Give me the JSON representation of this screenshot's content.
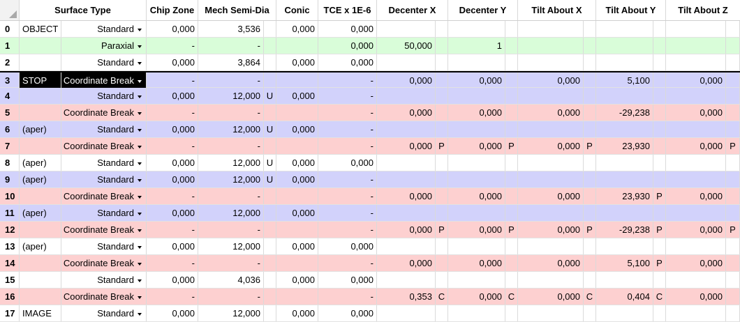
{
  "header": {
    "surface_type": "Surface Type",
    "chip_zone": "Chip Zone",
    "mech_semi_dia": "Mech Semi-Dia",
    "conic": "Conic",
    "tce": "TCE x 1E-6",
    "decenter_x": "Decenter X",
    "decenter_y": "Decenter Y",
    "tilt_x": "Tilt About X",
    "tilt_y": "Tilt About Y",
    "tilt_z": "Tilt About Z"
  },
  "colors": {
    "white": "#ffffff",
    "green": "#d9fdd9",
    "blue": "#d2d2fb",
    "pink": "#fdd0d0",
    "selected": "#000000"
  },
  "rows": [
    {
      "num": "0",
      "label": "OBJECT",
      "type": "Standard",
      "bg": "white",
      "chip": "0,000",
      "mech": "3,536",
      "mechf": "",
      "conic": "0,000",
      "tce": "0,000",
      "dx": "",
      "dxf": "",
      "dy": "",
      "dyf": "",
      "tx": "",
      "txf": "",
      "ty": "",
      "tyf": "",
      "tz": "",
      "tzf": ""
    },
    {
      "num": "1",
      "label": "",
      "type": "Paraxial",
      "bg": "green",
      "chip": "-",
      "mech": "-",
      "mechf": "",
      "conic": "",
      "tce": "0,000",
      "dx": "50,000",
      "dxf": "",
      "dy": "1",
      "dyf": "",
      "tx": "",
      "txf": "",
      "ty": "",
      "tyf": "",
      "tz": "",
      "tzf": ""
    },
    {
      "num": "2",
      "label": "",
      "type": "Standard",
      "bg": "white",
      "chip": "0,000",
      "mech": "3,864",
      "mechf": "",
      "conic": "0,000",
      "tce": "0,000",
      "dx": "",
      "dxf": "",
      "dy": "",
      "dyf": "",
      "tx": "",
      "txf": "",
      "ty": "",
      "tyf": "",
      "tz": "",
      "tzf": ""
    },
    {
      "num": "3",
      "label": "STOP",
      "type": "Coordinate Break",
      "bg": "blue",
      "chip": "-",
      "mech": "-",
      "mechf": "",
      "conic": "",
      "tce": "-",
      "dx": "0,000",
      "dxf": "",
      "dy": "0,000",
      "dyf": "",
      "tx": "0,000",
      "txf": "",
      "ty": "5,100",
      "tyf": "",
      "tz": "0,000",
      "tzf": ""
    },
    {
      "num": "4",
      "label": "",
      "type": "Standard",
      "bg": "blue",
      "chip": "0,000",
      "mech": "12,000",
      "mechf": "U",
      "conic": "0,000",
      "tce": "-",
      "dx": "",
      "dxf": "",
      "dy": "",
      "dyf": "",
      "tx": "",
      "txf": "",
      "ty": "",
      "tyf": "",
      "tz": "",
      "tzf": ""
    },
    {
      "num": "5",
      "label": "",
      "type": "Coordinate Break",
      "bg": "pink",
      "chip": "-",
      "mech": "-",
      "mechf": "",
      "conic": "",
      "tce": "-",
      "dx": "0,000",
      "dxf": "",
      "dy": "0,000",
      "dyf": "",
      "tx": "0,000",
      "txf": "",
      "ty": "-29,238",
      "tyf": "",
      "tz": "0,000",
      "tzf": ""
    },
    {
      "num": "6",
      "label": "(aper)",
      "type": "Standard",
      "bg": "blue",
      "chip": "0,000",
      "mech": "12,000",
      "mechf": "U",
      "conic": "0,000",
      "tce": "-",
      "dx": "",
      "dxf": "",
      "dy": "",
      "dyf": "",
      "tx": "",
      "txf": "",
      "ty": "",
      "tyf": "",
      "tz": "",
      "tzf": ""
    },
    {
      "num": "7",
      "label": "",
      "type": "Coordinate Break",
      "bg": "pink",
      "chip": "-",
      "mech": "-",
      "mechf": "",
      "conic": "",
      "tce": "-",
      "dx": "0,000",
      "dxf": "P",
      "dy": "0,000",
      "dyf": "P",
      "tx": "0,000",
      "txf": "P",
      "ty": "23,930",
      "tyf": "",
      "tz": "0,000",
      "tzf": "P"
    },
    {
      "num": "8",
      "label": "(aper)",
      "type": "Standard",
      "bg": "white",
      "chip": "0,000",
      "mech": "12,000",
      "mechf": "U",
      "conic": "0,000",
      "tce": "0,000",
      "dx": "",
      "dxf": "",
      "dy": "",
      "dyf": "",
      "tx": "",
      "txf": "",
      "ty": "",
      "tyf": "",
      "tz": "",
      "tzf": ""
    },
    {
      "num": "9",
      "label": "(aper)",
      "type": "Standard",
      "bg": "blue",
      "chip": "0,000",
      "mech": "12,000",
      "mechf": "U",
      "conic": "0,000",
      "tce": "-",
      "dx": "",
      "dxf": "",
      "dy": "",
      "dyf": "",
      "tx": "",
      "txf": "",
      "ty": "",
      "tyf": "",
      "tz": "",
      "tzf": ""
    },
    {
      "num": "10",
      "label": "",
      "type": "Coordinate Break",
      "bg": "pink",
      "chip": "-",
      "mech": "-",
      "mechf": "",
      "conic": "",
      "tce": "-",
      "dx": "0,000",
      "dxf": "",
      "dy": "0,000",
      "dyf": "",
      "tx": "0,000",
      "txf": "",
      "ty": "23,930",
      "tyf": "P",
      "tz": "0,000",
      "tzf": ""
    },
    {
      "num": "11",
      "label": "(aper)",
      "type": "Standard",
      "bg": "blue",
      "chip": "0,000",
      "mech": "12,000",
      "mechf": "",
      "conic": "0,000",
      "tce": "-",
      "dx": "",
      "dxf": "",
      "dy": "",
      "dyf": "",
      "tx": "",
      "txf": "",
      "ty": "",
      "tyf": "",
      "tz": "",
      "tzf": ""
    },
    {
      "num": "12",
      "label": "",
      "type": "Coordinate Break",
      "bg": "pink",
      "chip": "-",
      "mech": "-",
      "mechf": "",
      "conic": "",
      "tce": "-",
      "dx": "0,000",
      "dxf": "P",
      "dy": "0,000",
      "dyf": "P",
      "tx": "0,000",
      "txf": "P",
      "ty": "-29,238",
      "tyf": "P",
      "tz": "0,000",
      "tzf": "P"
    },
    {
      "num": "13",
      "label": "(aper)",
      "type": "Standard",
      "bg": "white",
      "chip": "0,000",
      "mech": "12,000",
      "mechf": "",
      "conic": "0,000",
      "tce": "0,000",
      "dx": "",
      "dxf": "",
      "dy": "",
      "dyf": "",
      "tx": "",
      "txf": "",
      "ty": "",
      "tyf": "",
      "tz": "",
      "tzf": ""
    },
    {
      "num": "14",
      "label": "",
      "type": "Coordinate Break",
      "bg": "pink",
      "chip": "-",
      "mech": "-",
      "mechf": "",
      "conic": "",
      "tce": "-",
      "dx": "0,000",
      "dxf": "",
      "dy": "0,000",
      "dyf": "",
      "tx": "0,000",
      "txf": "",
      "ty": "5,100",
      "tyf": "P",
      "tz": "0,000",
      "tzf": ""
    },
    {
      "num": "15",
      "label": "",
      "type": "Standard",
      "bg": "white",
      "chip": "0,000",
      "mech": "4,036",
      "mechf": "",
      "conic": "0,000",
      "tce": "0,000",
      "dx": "",
      "dxf": "",
      "dy": "",
      "dyf": "",
      "tx": "",
      "txf": "",
      "ty": "",
      "tyf": "",
      "tz": "",
      "tzf": ""
    },
    {
      "num": "16",
      "label": "",
      "type": "Coordinate Break",
      "bg": "pink",
      "chip": "-",
      "mech": "-",
      "mechf": "",
      "conic": "",
      "tce": "-",
      "dx": "0,353",
      "dxf": "C",
      "dy": "0,000",
      "dyf": "C",
      "tx": "0,000",
      "txf": "C",
      "ty": "0,404",
      "tyf": "C",
      "tz": "0,000",
      "tzf": ""
    },
    {
      "num": "17",
      "label": "IMAGE",
      "type": "Standard",
      "bg": "white",
      "chip": "0,000",
      "mech": "12,000",
      "mechf": "",
      "conic": "0,000",
      "tce": "0,000",
      "dx": "",
      "dxf": "",
      "dy": "",
      "dyf": "",
      "tx": "",
      "txf": "",
      "ty": "",
      "tyf": "",
      "tz": "",
      "tzf": ""
    }
  ]
}
